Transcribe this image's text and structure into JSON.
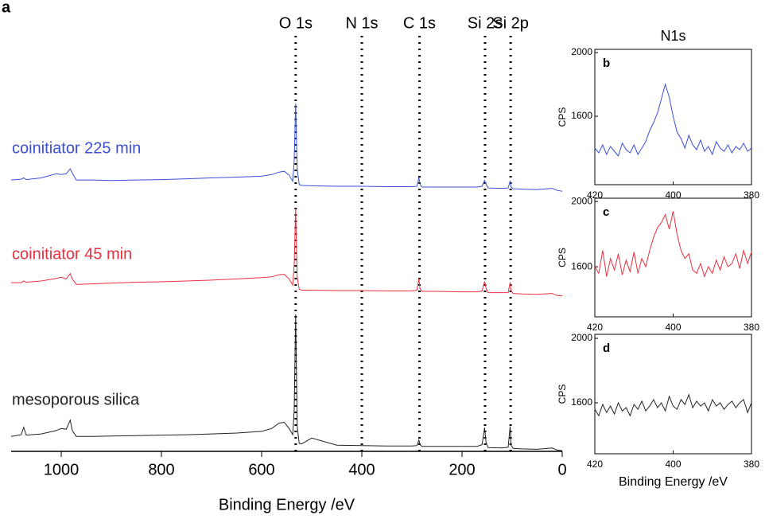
{
  "chart_data": [
    {
      "type": "line",
      "panel": "a",
      "xlabel": "Binding Energy /eV",
      "xlim": [
        1100,
        0
      ],
      "xticks": [
        1000,
        800,
        600,
        400,
        200,
        0
      ],
      "ylim": [
        0,
        100
      ],
      "peaks": [
        {
          "label": "O 1s",
          "x": 532
        },
        {
          "label": "N 1s",
          "x": 400
        },
        {
          "label": "C 1s",
          "x": 285
        },
        {
          "label": "Si 2s",
          "x": 154
        },
        {
          "label": "Si 2p",
          "x": 103
        }
      ],
      "series": [
        {
          "name": "coinitiator 225 min",
          "color": "#3a4fd6",
          "x": [
            1100,
            1080,
            1075,
            1070,
            1040,
            1010,
            1000,
            990,
            982,
            978,
            970,
            940,
            900,
            850,
            800,
            750,
            700,
            650,
            600,
            580,
            565,
            555,
            545,
            538,
            535,
            532,
            529,
            525,
            520,
            500,
            450,
            400,
            350,
            300,
            290,
            286,
            284,
            280,
            250,
            200,
            170,
            160,
            155,
            152,
            148,
            120,
            108,
            104,
            102,
            98,
            80,
            50,
            20,
            10,
            0
          ],
          "values": [
            65.3,
            65.5,
            65.8,
            65.4,
            65.8,
            66.8,
            66.6,
            66.8,
            68,
            67,
            65.3,
            65.3,
            65.2,
            65.3,
            65.4,
            65.6,
            65.8,
            66,
            66.2,
            66.6,
            67.2,
            67.4,
            66.5,
            65,
            70,
            83.7,
            68,
            64.2,
            64,
            63.9,
            63.8,
            63.8,
            63.7,
            63.7,
            63.8,
            65.9,
            64.3,
            63.6,
            63.6,
            63.6,
            63.6,
            63.8,
            65.2,
            64.3,
            63.4,
            63.3,
            63.4,
            65.1,
            63.6,
            63.2,
            63.1,
            63,
            63.3,
            62.8,
            62.6
          ]
        },
        {
          "name": "coinitiator 45 min",
          "color": "#e8303f",
          "x": [
            1100,
            1080,
            1075,
            1070,
            1040,
            1010,
            1000,
            990,
            982,
            978,
            970,
            940,
            900,
            850,
            800,
            750,
            700,
            650,
            600,
            580,
            565,
            555,
            545,
            538,
            535,
            532,
            529,
            525,
            520,
            500,
            450,
            400,
            350,
            300,
            290,
            286,
            284,
            280,
            250,
            200,
            170,
            160,
            155,
            152,
            148,
            120,
            108,
            104,
            102,
            98,
            80,
            50,
            20,
            10,
            0
          ],
          "values": [
            40.6,
            40.6,
            41,
            40.7,
            41,
            41.6,
            41.9,
            41.5,
            42.8,
            41.5,
            40.2,
            40.3,
            40.5,
            40.7,
            40.8,
            41,
            41.2,
            41.5,
            41.8,
            42,
            42.5,
            42.6,
            41.5,
            40,
            45,
            58.4,
            42,
            39,
            38.8,
            38.8,
            38.7,
            38.7,
            38.6,
            38.6,
            38.8,
            41.6,
            39.2,
            38.5,
            38.5,
            38.4,
            38.4,
            38.6,
            40.9,
            39.3,
            38.2,
            38.2,
            38.2,
            40.7,
            38.5,
            38,
            37.9,
            37.8,
            38,
            37.5,
            37.4
          ]
        },
        {
          "name": "mesoporous silica",
          "color": "#222222",
          "x": [
            1100,
            1080,
            1075,
            1070,
            1040,
            1010,
            1000,
            990,
            982,
            978,
            970,
            940,
            900,
            850,
            800,
            750,
            700,
            650,
            600,
            580,
            565,
            555,
            545,
            538,
            535,
            532,
            529,
            525,
            520,
            500,
            450,
            400,
            350,
            300,
            290,
            286,
            284,
            280,
            250,
            200,
            170,
            160,
            155,
            152,
            148,
            120,
            108,
            104,
            102,
            98,
            80,
            50,
            20,
            10,
            0
          ],
          "values": [
            3.6,
            4,
            5.8,
            3.9,
            4.2,
            5,
            5.5,
            5.3,
            7.5,
            5,
            3.6,
            3.6,
            3.7,
            3.8,
            3.9,
            4,
            4.2,
            4.4,
            4.8,
            5.5,
            6.8,
            7,
            5.5,
            4,
            10,
            33,
            6,
            1.9,
            1.8,
            3.2,
            1.5,
            1.4,
            1.3,
            1.3,
            1.4,
            2.7,
            1.6,
            1.2,
            1.2,
            1.2,
            1.2,
            1.6,
            5.7,
            2.2,
            0.9,
            0.8,
            1,
            6,
            1.5,
            0.7,
            0.6,
            0.5,
            0.8,
            0.3,
            0.2
          ]
        }
      ]
    },
    {
      "type": "line",
      "panel": "b",
      "title": "N1s",
      "ylabel": "CPS",
      "xlim": [
        420,
        380
      ],
      "xticks": [
        420,
        400,
        380
      ],
      "ylim": [
        1170,
        2020
      ],
      "yticks": [
        1600,
        2000
      ],
      "x": [
        420,
        419,
        418,
        417,
        416,
        415,
        414,
        413,
        412,
        411,
        410,
        409,
        408,
        407,
        406,
        405,
        404,
        403,
        402,
        401,
        400,
        399,
        398,
        397,
        396,
        395,
        394,
        393,
        392,
        391,
        390,
        389,
        388,
        387,
        386,
        385,
        384,
        383,
        382,
        381,
        380
      ],
      "series": [
        {
          "color": "#3a4fd6",
          "values": [
            1400,
            1370,
            1420,
            1360,
            1410,
            1380,
            1350,
            1430,
            1390,
            1370,
            1420,
            1360,
            1400,
            1440,
            1510,
            1560,
            1620,
            1710,
            1800,
            1720,
            1600,
            1500,
            1460,
            1400,
            1480,
            1420,
            1390,
            1450,
            1380,
            1410,
            1360,
            1440,
            1400,
            1380,
            1420,
            1370,
            1410,
            1390,
            1430,
            1380,
            1400
          ]
        }
      ]
    },
    {
      "type": "line",
      "panel": "c",
      "ylabel": "CPS",
      "xlim": [
        420,
        380
      ],
      "xticks": [
        420,
        400,
        380
      ],
      "ylim": [
        1293,
        2020
      ],
      "yticks": [
        1600,
        2000
      ],
      "x": [
        420,
        419,
        418,
        417,
        416,
        415,
        414,
        413,
        412,
        411,
        410,
        409,
        408,
        407,
        406,
        405,
        404,
        403,
        402,
        401,
        400,
        399,
        398,
        397,
        396,
        395,
        394,
        393,
        392,
        391,
        390,
        389,
        388,
        387,
        386,
        385,
        384,
        383,
        382,
        381,
        380
      ],
      "series": [
        {
          "color": "#e8303f",
          "values": [
            1600,
            1560,
            1700,
            1540,
            1650,
            1580,
            1680,
            1550,
            1640,
            1570,
            1690,
            1560,
            1650,
            1600,
            1700,
            1780,
            1840,
            1870,
            1920,
            1830,
            1940,
            1800,
            1700,
            1650,
            1680,
            1580,
            1560,
            1620,
            1540,
            1600,
            1560,
            1640,
            1580,
            1660,
            1600,
            1620,
            1680,
            1590,
            1700,
            1620,
            1690
          ]
        }
      ]
    },
    {
      "type": "line",
      "panel": "d",
      "ylabel": "CPS",
      "xlabel": "Binding Energy /eV",
      "xlim": [
        420,
        380
      ],
      "xticks": [
        420,
        400,
        380
      ],
      "ylim": [
        1284,
        2025
      ],
      "yticks": [
        1600,
        2000
      ],
      "x": [
        420,
        419,
        418,
        417,
        416,
        415,
        414,
        413,
        412,
        411,
        410,
        409,
        408,
        407,
        406,
        405,
        404,
        403,
        402,
        401,
        400,
        399,
        398,
        397,
        396,
        395,
        394,
        393,
        392,
        391,
        390,
        389,
        388,
        387,
        386,
        385,
        384,
        383,
        382,
        381,
        380
      ],
      "series": [
        {
          "color": "#222222",
          "values": [
            1560,
            1520,
            1590,
            1540,
            1580,
            1530,
            1600,
            1550,
            1570,
            1520,
            1590,
            1560,
            1610,
            1550,
            1580,
            1620,
            1570,
            1600,
            1550,
            1640,
            1580,
            1560,
            1620,
            1590,
            1650,
            1570,
            1610,
            1580,
            1600,
            1550,
            1620,
            1580,
            1600,
            1560,
            1590,
            1610,
            1570,
            1600,
            1620,
            1540,
            1600
          ]
        }
      ]
    }
  ]
}
